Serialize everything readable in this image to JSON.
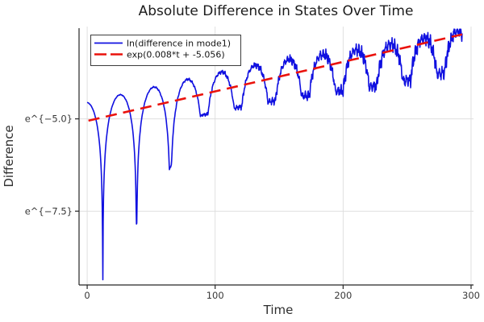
{
  "chart_data": {
    "type": "line",
    "title": "Absolute Difference in States Over Time",
    "xlabel": "Time",
    "ylabel": "Difference",
    "grid": true,
    "legend": {
      "position": "top-left",
      "bordered": true
    },
    "x_axis": {
      "lim": [
        -6.35,
        301.9
      ],
      "ticks": [
        {
          "value": 0,
          "label": "0"
        },
        {
          "value": 100,
          "label": "100"
        },
        {
          "value": 200,
          "label": "200"
        },
        {
          "value": 300,
          "label": "300"
        }
      ]
    },
    "y_axis": {
      "scale": "log-e",
      "lim_ln": [
        -9.5,
        -2.543
      ],
      "ticks": [
        {
          "value_ln": -5.0,
          "label": "e^{−5.0}"
        },
        {
          "value_ln": -7.5,
          "label": "e^{−7.5}"
        }
      ]
    },
    "series": [
      {
        "name": "ln(difference in mode1)",
        "color": "#1010e0",
        "line_style": "solid",
        "line_width": 1.6,
        "description": "Absolute state difference on a natural-log scale: exponentially growing |cos| oscillation with ~26.4-time-unit half-period, deep cusps at zero crossings that become shallow and noisy as time grows",
        "generator": {
          "t_start": 0,
          "t_end": 293,
          "dt": 0.25,
          "growth_slope": 0.008,
          "envelope_intercept": -4.55,
          "first_zero_t": 12.2,
          "half_period": 26.4,
          "floor_base": 0.004,
          "floor_growth": 0.05,
          "floor_max": 0.35,
          "sag_max": 0.4,
          "sag_mid": 190,
          "sag_width": 30,
          "noise_amp_max": 0.18,
          "noise_mid": 150,
          "noise_width": 40,
          "noise_scale": 1.2,
          "noise_components": [
            [
              2.7,
              0.5,
              0.0
            ],
            [
              6.3,
              0.35,
              1.3
            ],
            [
              11.9,
              0.25,
              0.7
            ],
            [
              19.3,
              0.3,
              2.1
            ]
          ],
          "ln_clamp_max": -2.57
        },
        "observed_dips_t_ln": [
          [
            12.6,
            -9.33
          ],
          [
            37.8,
            -8.0
          ],
          [
            63,
            -6.4
          ],
          [
            88.8,
            -5.24
          ],
          [
            116.6,
            -4.67
          ],
          [
            144,
            -4.55
          ],
          [
            171.4,
            -4.22
          ],
          [
            199.7,
            -3.92
          ],
          [
            224,
            -3.9
          ],
          [
            254.6,
            -3.96
          ],
          [
            282,
            -3.6
          ]
        ],
        "observed_peaks_t_ln": [
          [
            0,
            -4.56
          ],
          [
            25,
            -4.35
          ],
          [
            50,
            -4.15
          ],
          [
            76,
            -3.95
          ],
          [
            102,
            -3.57
          ],
          [
            129,
            -3.52
          ],
          [
            156,
            -3.4
          ],
          [
            183,
            -3.3
          ],
          [
            214,
            -3.2
          ],
          [
            241,
            -3.0
          ],
          [
            268,
            -2.8
          ],
          [
            290,
            -2.6
          ]
        ]
      },
      {
        "name": "exp(0.008*t + -5.056)",
        "color": "#ea120c",
        "line_style": "dashed",
        "line_width": 2.6,
        "dash_pattern": [
          14,
          8
        ],
        "slope": 0.008,
        "intercept": -5.056,
        "t_range": [
          1,
          293
        ]
      }
    ]
  }
}
